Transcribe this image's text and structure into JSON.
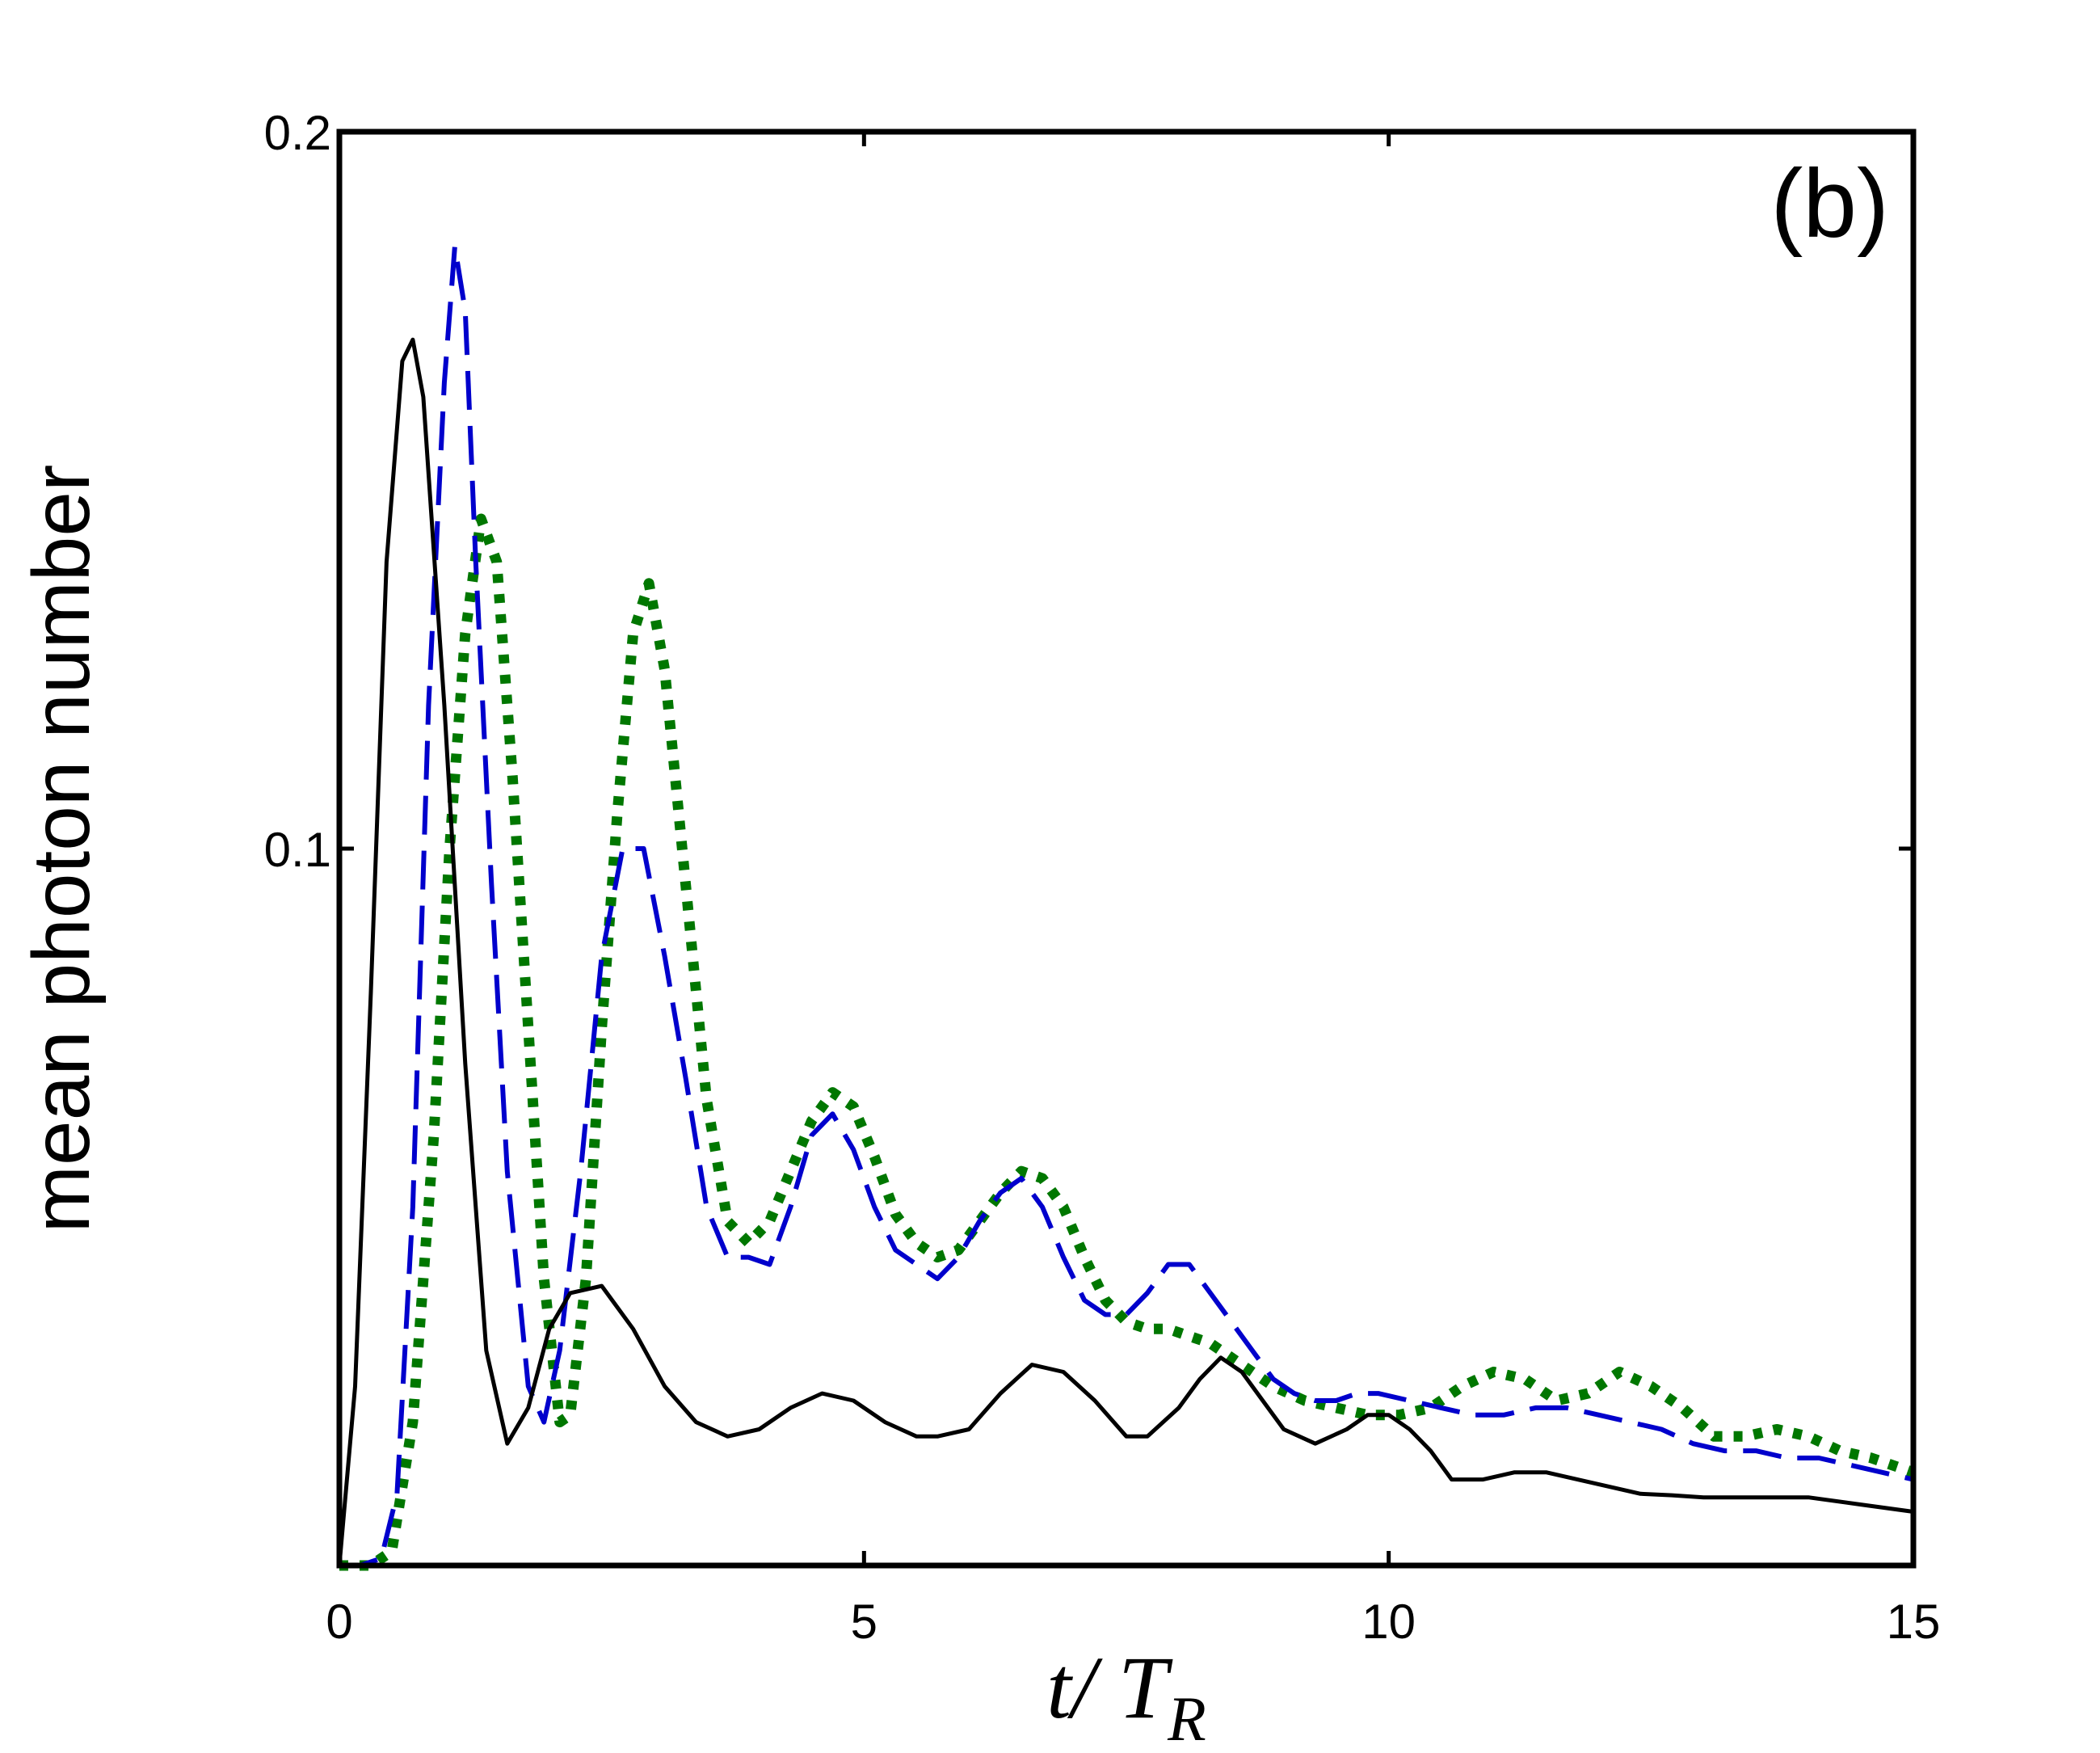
{
  "chart_data": {
    "type": "line",
    "panel_label": "(b)",
    "ylabel": "mean photon number",
    "xlabel_main": "t/ T",
    "xlabel_sub": "R",
    "xlim": [
      0,
      15
    ],
    "ylim": [
      0,
      0.2
    ],
    "xticks": [
      0,
      5,
      10,
      15
    ],
    "xtick_labels": [
      "0",
      "5",
      "10",
      "15"
    ],
    "yticks": [
      0.1,
      0.2
    ],
    "ytick_labels": [
      "0.1",
      "0.2"
    ],
    "grid": false,
    "series": [
      {
        "style": "solid",
        "color": "#000000",
        "x": [
          0,
          0.15,
          0.3,
          0.45,
          0.6,
          0.7,
          0.8,
          1.0,
          1.2,
          1.4,
          1.6,
          1.8,
          2.0,
          2.2,
          2.5,
          2.8,
          3.1,
          3.4,
          3.7,
          4.0,
          4.3,
          4.6,
          4.9,
          5.2,
          5.5,
          5.7,
          6.0,
          6.3,
          6.6,
          6.9,
          7.2,
          7.5,
          7.7,
          8.0,
          8.2,
          8.4,
          8.6,
          8.8,
          9.0,
          9.3,
          9.6,
          9.8,
          10.0,
          10.2,
          10.4,
          10.6,
          10.9,
          11.2,
          11.5,
          11.8,
          12.1,
          12.4,
          12.7,
          13.0,
          13.5,
          14.0,
          14.5,
          15.0
        ],
        "y": [
          0,
          0.025,
          0.08,
          0.14,
          0.168,
          0.171,
          0.163,
          0.12,
          0.07,
          0.03,
          0.017,
          0.022,
          0.033,
          0.038,
          0.039,
          0.033,
          0.025,
          0.02,
          0.018,
          0.019,
          0.022,
          0.024,
          0.023,
          0.02,
          0.018,
          0.018,
          0.019,
          0.024,
          0.028,
          0.027,
          0.023,
          0.018,
          0.018,
          0.022,
          0.026,
          0.029,
          0.027,
          0.023,
          0.019,
          0.017,
          0.019,
          0.021,
          0.021,
          0.019,
          0.016,
          0.012,
          0.012,
          0.013,
          0.013,
          0.012,
          0.011,
          0.01,
          0.0098,
          0.0095,
          0.0095,
          0.0095,
          0.0085,
          0.0075
        ]
      },
      {
        "style": "dashed",
        "color": "#0000cc",
        "x": [
          0,
          0.2,
          0.4,
          0.55,
          0.7,
          0.85,
          1.0,
          1.1,
          1.2,
          1.3,
          1.45,
          1.6,
          1.8,
          1.95,
          2.1,
          2.3,
          2.5,
          2.7,
          2.9,
          3.1,
          3.3,
          3.5,
          3.7,
          3.9,
          4.1,
          4.3,
          4.5,
          4.7,
          4.9,
          5.1,
          5.3,
          5.5,
          5.7,
          5.9,
          6.1,
          6.3,
          6.5,
          6.7,
          6.9,
          7.1,
          7.3,
          7.5,
          7.7,
          7.9,
          8.1,
          8.3,
          8.5,
          8.7,
          8.9,
          9.1,
          9.3,
          9.5,
          9.7,
          9.9,
          10.2,
          10.5,
          10.8,
          11.1,
          11.4,
          11.7,
          12.0,
          12.3,
          12.6,
          12.9,
          13.2,
          13.5,
          13.8,
          14.1,
          14.4,
          14.7,
          15.0
        ],
        "y": [
          0,
          0,
          0.001,
          0.01,
          0.05,
          0.12,
          0.165,
          0.184,
          0.175,
          0.14,
          0.095,
          0.055,
          0.025,
          0.02,
          0.03,
          0.055,
          0.085,
          0.1,
          0.1,
          0.085,
          0.068,
          0.05,
          0.043,
          0.043,
          0.042,
          0.05,
          0.06,
          0.063,
          0.058,
          0.05,
          0.044,
          0.042,
          0.04,
          0.043,
          0.048,
          0.052,
          0.054,
          0.05,
          0.043,
          0.037,
          0.035,
          0.035,
          0.038,
          0.042,
          0.042,
          0.038,
          0.034,
          0.03,
          0.026,
          0.024,
          0.023,
          0.023,
          0.024,
          0.024,
          0.023,
          0.022,
          0.021,
          0.021,
          0.022,
          0.022,
          0.021,
          0.02,
          0.019,
          0.017,
          0.016,
          0.016,
          0.015,
          0.015,
          0.014,
          0.013,
          0.012
        ]
      },
      {
        "style": "dotted",
        "color": "#007700",
        "x": [
          0,
          0.3,
          0.5,
          0.7,
          0.9,
          1.05,
          1.2,
          1.35,
          1.5,
          1.65,
          1.8,
          1.95,
          2.1,
          2.2,
          2.35,
          2.5,
          2.65,
          2.8,
          2.95,
          3.1,
          3.3,
          3.5,
          3.7,
          3.9,
          4.1,
          4.3,
          4.5,
          4.7,
          4.9,
          5.1,
          5.3,
          5.5,
          5.7,
          5.9,
          6.1,
          6.3,
          6.5,
          6.7,
          6.9,
          7.1,
          7.3,
          7.5,
          7.7,
          7.9,
          8.1,
          8.3,
          8.5,
          8.7,
          8.9,
          9.2,
          9.5,
          9.8,
          10.1,
          10.4,
          10.7,
          11.0,
          11.3,
          11.6,
          11.9,
          12.2,
          12.5,
          12.8,
          13.1,
          13.4,
          13.7,
          14.0,
          14.3,
          14.6,
          15.0
        ],
        "y": [
          0,
          0,
          0.002,
          0.02,
          0.06,
          0.1,
          0.13,
          0.146,
          0.14,
          0.11,
          0.075,
          0.04,
          0.02,
          0.021,
          0.04,
          0.075,
          0.105,
          0.13,
          0.137,
          0.125,
          0.095,
          0.065,
          0.048,
          0.045,
          0.048,
          0.055,
          0.062,
          0.066,
          0.064,
          0.057,
          0.049,
          0.045,
          0.043,
          0.044,
          0.048,
          0.052,
          0.055,
          0.054,
          0.05,
          0.043,
          0.037,
          0.034,
          0.033,
          0.033,
          0.032,
          0.031,
          0.029,
          0.027,
          0.025,
          0.023,
          0.022,
          0.021,
          0.021,
          0.022,
          0.025,
          0.027,
          0.026,
          0.023,
          0.024,
          0.027,
          0.025,
          0.022,
          0.018,
          0.018,
          0.019,
          0.018,
          0.016,
          0.015,
          0.013
        ]
      }
    ]
  }
}
